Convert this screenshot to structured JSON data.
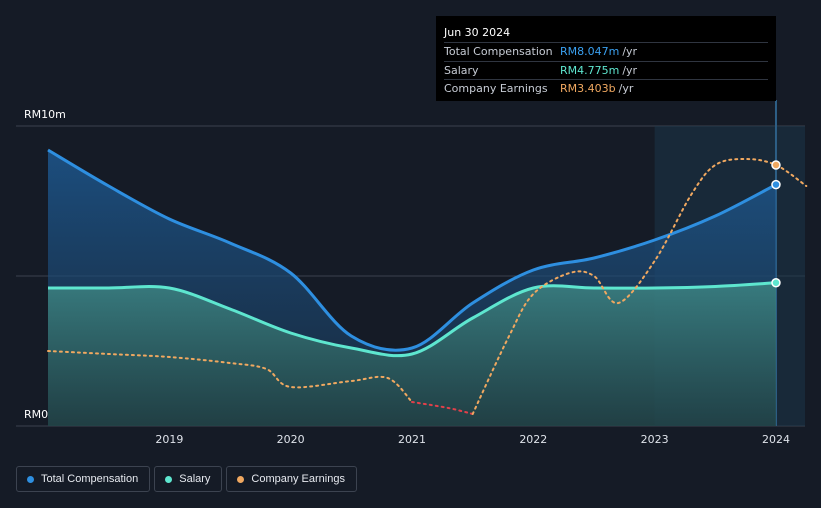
{
  "tooltip": {
    "date": "Jun 30 2024",
    "rows": [
      {
        "label": "Total Compensation",
        "value": "RM8.047m",
        "unit": "/yr",
        "color": "#3aa0f0"
      },
      {
        "label": "Salary",
        "value": "RM4.775m",
        "unit": "/yr",
        "color": "#5ee6cf"
      },
      {
        "label": "Company Earnings",
        "value": "RM3.403b",
        "unit": "/yr",
        "color": "#f0a860"
      }
    ]
  },
  "legend": [
    {
      "label": "Total Compensation",
      "color": "#2e8fe0"
    },
    {
      "label": "Salary",
      "color": "#5ee6cf"
    },
    {
      "label": "Company Earnings",
      "color": "#f0a860"
    }
  ],
  "chart_data": {
    "type": "line",
    "title": "",
    "xlabel": "",
    "ylabel": "",
    "x_ticks": [
      "2019",
      "2020",
      "2021",
      "2022",
      "2023",
      "2024"
    ],
    "y_ticks": [
      "RM0",
      "RM10m"
    ],
    "ylim": [
      0,
      10
    ],
    "xlim": [
      2018.5,
      2024.75
    ],
    "grid": true,
    "forecast_region_start": 2023.5,
    "highlight_date": 2024.5,
    "series": [
      {
        "name": "Total Compensation",
        "unit": "RM m",
        "color": "#2e8fe0",
        "points": [
          [
            2018.5,
            9.2
          ],
          [
            2019.0,
            8.0
          ],
          [
            2019.5,
            6.9
          ],
          [
            2020.0,
            6.1
          ],
          [
            2020.5,
            5.1
          ],
          [
            2021.0,
            3.0
          ],
          [
            2021.5,
            2.6
          ],
          [
            2022.0,
            4.1
          ],
          [
            2022.5,
            5.2
          ],
          [
            2023.0,
            5.6
          ],
          [
            2023.5,
            6.2
          ],
          [
            2024.0,
            7.0
          ],
          [
            2024.5,
            8.047
          ]
        ]
      },
      {
        "name": "Salary",
        "unit": "RM m",
        "color": "#5ee6cf",
        "points": [
          [
            2018.5,
            4.6
          ],
          [
            2019.0,
            4.6
          ],
          [
            2019.5,
            4.6
          ],
          [
            2020.0,
            3.9
          ],
          [
            2020.5,
            3.1
          ],
          [
            2021.0,
            2.6
          ],
          [
            2021.5,
            2.4
          ],
          [
            2022.0,
            3.6
          ],
          [
            2022.5,
            4.6
          ],
          [
            2023.0,
            4.6
          ],
          [
            2023.5,
            4.6
          ],
          [
            2024.0,
            4.65
          ],
          [
            2024.5,
            4.775
          ]
        ]
      },
      {
        "name": "Company Earnings",
        "unit": "scaled",
        "color": "#f0a860",
        "negative_color": "#e0404a",
        "points": [
          [
            2018.5,
            2.5
          ],
          [
            2019.0,
            2.4
          ],
          [
            2019.5,
            2.3
          ],
          [
            2020.0,
            2.1
          ],
          [
            2020.3,
            1.9
          ],
          [
            2020.5,
            1.3
          ],
          [
            2021.0,
            1.5
          ],
          [
            2021.3,
            1.6
          ],
          [
            2021.5,
            0.8
          ],
          [
            2021.8,
            0.6
          ],
          [
            2022.0,
            0.4
          ],
          [
            2022.3,
            3.0
          ],
          [
            2022.5,
            4.4
          ],
          [
            2022.8,
            5.1
          ],
          [
            2023.0,
            5.0
          ],
          [
            2023.2,
            4.1
          ],
          [
            2023.5,
            5.5
          ],
          [
            2023.8,
            7.7
          ],
          [
            2024.0,
            8.7
          ],
          [
            2024.25,
            8.9
          ],
          [
            2024.5,
            8.7
          ],
          [
            2024.75,
            8.0
          ]
        ]
      }
    ]
  }
}
